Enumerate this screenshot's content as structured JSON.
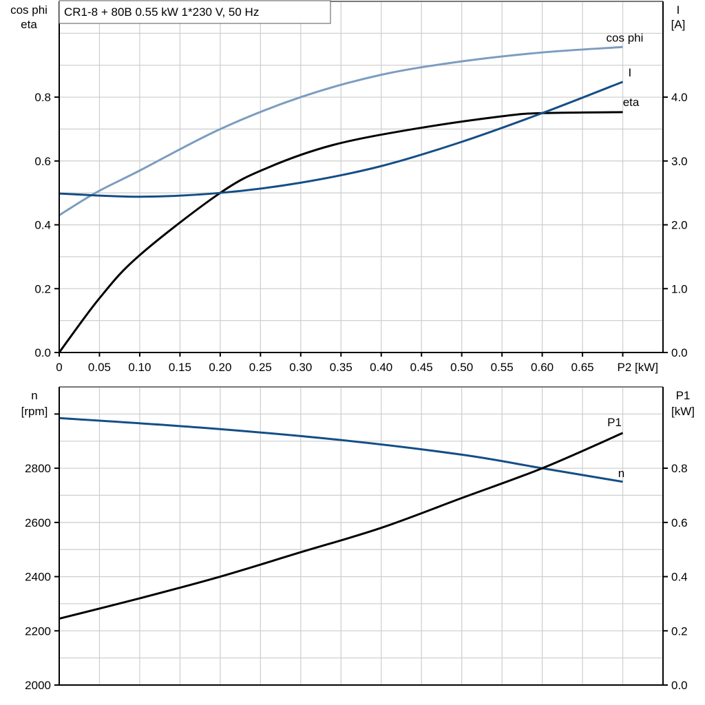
{
  "title": "CR1-8 + 80B   0.55 kW   1*230 V, 50 Hz",
  "colors": {
    "cos_phi": "#7b9dbf",
    "I": "#144e86",
    "eta": "#000000",
    "n": "#144e86",
    "P1": "#000000",
    "grid": "#d0d0d0"
  },
  "chart_data": [
    {
      "type": "line",
      "xlabel": "P2 [kW]",
      "xlim": [
        0,
        0.75
      ],
      "x_ticks": [
        "0",
        "0.05",
        "0.10",
        "0.15",
        "0.20",
        "0.25",
        "0.30",
        "0.35",
        "0.40",
        "0.45",
        "0.50",
        "0.55",
        "0.60",
        "0.65"
      ],
      "ylabel_left": [
        "cos phi",
        "eta"
      ],
      "ylim_left": [
        0,
        1.1
      ],
      "y_ticks_left": [
        "0.0",
        "0.2",
        "0.4",
        "0.6",
        "0.8"
      ],
      "ylabel_right": [
        "I",
        "[A]"
      ],
      "ylim_right": [
        0,
        5.5
      ],
      "y_ticks_right": [
        "0.0",
        "1.0",
        "2.0",
        "3.0",
        "4.0"
      ],
      "grid": true,
      "series": [
        {
          "name": "cos phi",
          "axis": "left",
          "x": [
            0,
            0.045,
            0.1,
            0.2,
            0.3,
            0.4,
            0.5,
            0.6,
            0.7
          ],
          "y": [
            0.43,
            0.5,
            0.57,
            0.7,
            0.8,
            0.87,
            0.912,
            0.94,
            0.957
          ]
        },
        {
          "name": "eta",
          "axis": "left",
          "x": [
            0,
            0.05,
            0.1,
            0.2,
            0.26,
            0.34,
            0.44,
            0.55,
            0.6,
            0.7
          ],
          "y": [
            0,
            0.17,
            0.305,
            0.5,
            0.58,
            0.65,
            0.7,
            0.74,
            0.75,
            0.753
          ]
        },
        {
          "name": "I",
          "axis": "right",
          "x": [
            0,
            0.1,
            0.2,
            0.3,
            0.4,
            0.5,
            0.6,
            0.7
          ],
          "y": [
            2.49,
            2.44,
            2.5,
            2.66,
            2.92,
            3.3,
            3.75,
            4.24
          ]
        }
      ]
    },
    {
      "type": "line",
      "xlim": [
        0,
        0.75
      ],
      "ylabel_left": [
        "n",
        "[rpm]"
      ],
      "ylim_left": [
        2000,
        3100
      ],
      "y_ticks_left": [
        "2000",
        "2200",
        "2400",
        "2600",
        "2800"
      ],
      "ylabel_right": [
        "P1",
        "[kW]"
      ],
      "ylim_right": [
        0,
        1.1
      ],
      "y_ticks_right": [
        "0.0",
        "0.2",
        "0.4",
        "0.6",
        "0.8"
      ],
      "grid": true,
      "series": [
        {
          "name": "n",
          "axis": "left",
          "x": [
            0,
            0.175,
            0.35,
            0.5,
            0.6,
            0.7
          ],
          "y": [
            2985,
            2950,
            2904,
            2850,
            2800,
            2750
          ]
        },
        {
          "name": "P1",
          "axis": "right",
          "x": [
            0,
            0.1,
            0.2,
            0.3,
            0.4,
            0.5,
            0.6,
            0.7
          ],
          "y": [
            0.245,
            0.32,
            0.4,
            0.49,
            0.58,
            0.69,
            0.8,
            0.93
          ]
        }
      ]
    }
  ]
}
